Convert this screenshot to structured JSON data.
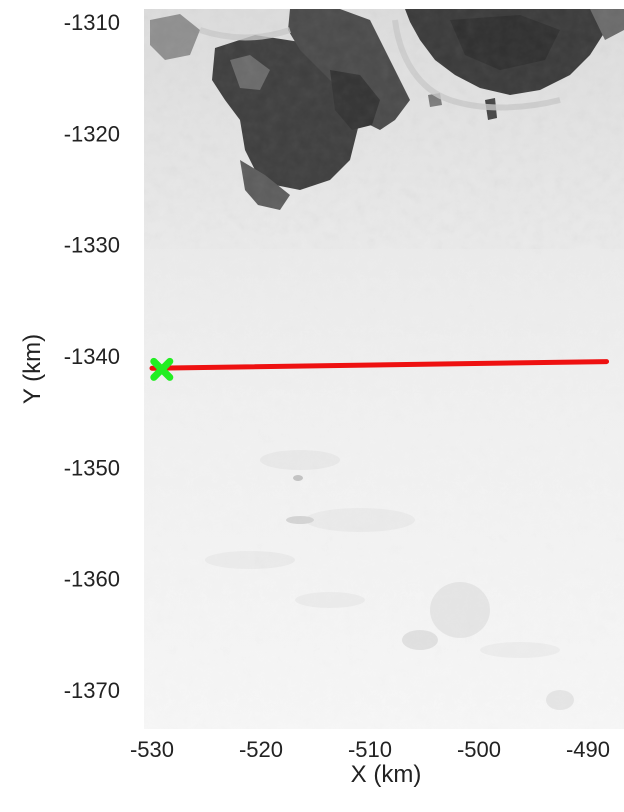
{
  "chart_data": {
    "type": "map",
    "basemap": "satellite-imagery-greyscale",
    "xlabel": "X (km)",
    "ylabel": "Y (km)",
    "xlim": [
      -530,
      -488
    ],
    "ylim": [
      -1373,
      -1308
    ],
    "x_ticks": [
      -530,
      -520,
      -510,
      -500,
      -490
    ],
    "y_ticks": [
      -1310,
      -1320,
      -1330,
      -1340,
      -1350,
      -1360,
      -1370
    ],
    "track": {
      "color": "#ee1111",
      "points": [
        [
          -530,
          -1341.1
        ],
        [
          -488.3,
          -1340.5
        ]
      ]
    },
    "marker": {
      "color": "#22ee22",
      "shape": "x-cross",
      "point": [
        -529.1,
        -1341.2
      ]
    }
  }
}
